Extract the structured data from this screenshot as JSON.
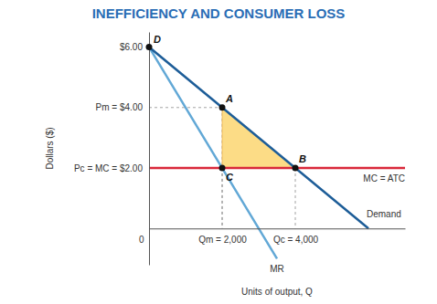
{
  "chart_data": {
    "type": "line",
    "title": "INEFFICIENCY AND CONSUMER LOSS",
    "x_label": "Units of output, Q",
    "y_label": "Dollars ($)",
    "xlim": [
      0,
      7000
    ],
    "ylim": [
      -1.2,
      6.5
    ],
    "xticks": [
      0,
      {
        "value": 2000,
        "label": "Qm = 2,000"
      },
      {
        "value": 4000,
        "label": "Qc = 4,000"
      }
    ],
    "yticks": [
      {
        "value": 2,
        "label": "Pc = MC = $2.00"
      },
      {
        "value": 4,
        "label": "Pm = $4.00"
      },
      {
        "value": 6,
        "label": "$6.00"
      }
    ],
    "grid": false,
    "series": [
      {
        "type": "area",
        "color": "#fcdc86",
        "x": [
          2000,
          4000,
          2000
        ],
        "values": [
          4,
          2,
          2
        ]
      },
      {
        "name": "MC = ATC",
        "color": "#d9283a",
        "x": [
          0,
          7000
        ],
        "values": [
          2,
          2
        ]
      },
      {
        "name": "MR",
        "color": "#62a8d6",
        "x": [
          0,
          2000,
          3500
        ],
        "values": [
          6,
          2,
          -1
        ]
      },
      {
        "name": "Demand",
        "color": "#1d5d98",
        "x": [
          0,
          2000,
          4000,
          6000
        ],
        "values": [
          6,
          4,
          2,
          0
        ]
      }
    ],
    "annotations": [
      {
        "label": "D",
        "x": 0,
        "y": 6
      },
      {
        "label": "A",
        "x": 2000,
        "y": 4
      },
      {
        "label": "B",
        "x": 4000,
        "y": 2
      },
      {
        "label": "C",
        "x": 2000,
        "y": 2
      }
    ]
  }
}
